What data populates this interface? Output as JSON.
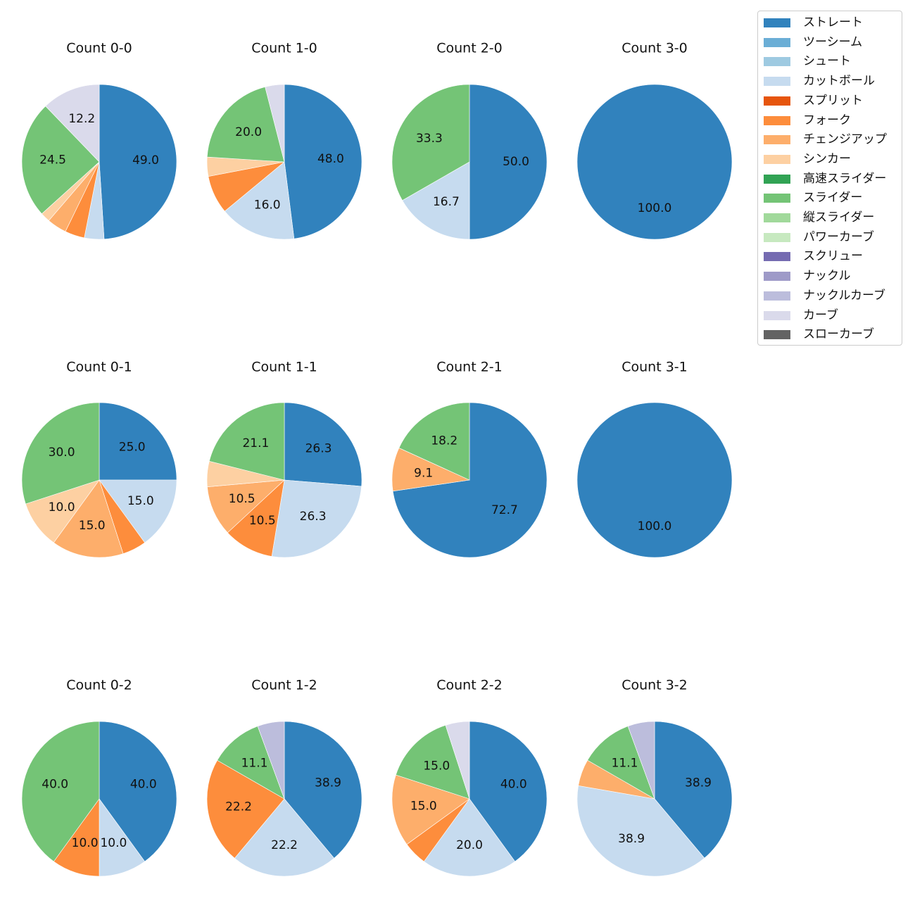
{
  "legend": [
    {
      "name": "ストレート",
      "color": "#3182bd"
    },
    {
      "name": "ツーシーム",
      "color": "#6baed6"
    },
    {
      "name": "シュート",
      "color": "#9ecae1"
    },
    {
      "name": "カットボール",
      "color": "#c6dbef"
    },
    {
      "name": "スプリット",
      "color": "#e6550d"
    },
    {
      "name": "フォーク",
      "color": "#fd8d3c"
    },
    {
      "name": "チェンジアップ",
      "color": "#fdae6b"
    },
    {
      "name": "シンカー",
      "color": "#fdd0a2"
    },
    {
      "name": "高速スライダー",
      "color": "#31a354"
    },
    {
      "name": "スライダー",
      "color": "#74c476"
    },
    {
      "name": "縦スライダー",
      "color": "#a1d99b"
    },
    {
      "name": "パワーカーブ",
      "color": "#c7e9c0"
    },
    {
      "name": "スクリュー",
      "color": "#756bb1"
    },
    {
      "name": "ナックル",
      "color": "#9e9ac8"
    },
    {
      "name": "ナックルカーブ",
      "color": "#bcbddc"
    },
    {
      "name": "カーブ",
      "color": "#dadaeb"
    },
    {
      "name": "スローカーブ",
      "color": "#636363"
    }
  ],
  "chart_data": [
    {
      "type": "pie",
      "title": "Count 0-0",
      "slices": [
        {
          "label": "ストレート",
          "value": 49.0,
          "text": "49.0"
        },
        {
          "label": "カットボール",
          "value": 4.1
        },
        {
          "label": "フォーク",
          "value": 4.1
        },
        {
          "label": "チェンジアップ",
          "value": 4.1
        },
        {
          "label": "シンカー",
          "value": 2.0
        },
        {
          "label": "スライダー",
          "value": 24.5,
          "text": "24.5"
        },
        {
          "label": "カーブ",
          "value": 12.2,
          "text": "12.2"
        }
      ]
    },
    {
      "type": "pie",
      "title": "Count 1-0",
      "slices": [
        {
          "label": "ストレート",
          "value": 48.0,
          "text": "48.0"
        },
        {
          "label": "カットボール",
          "value": 16.0,
          "text": "16.0"
        },
        {
          "label": "フォーク",
          "value": 8.0
        },
        {
          "label": "シンカー",
          "value": 4.0
        },
        {
          "label": "スライダー",
          "value": 20.0,
          "text": "20.0"
        },
        {
          "label": "カーブ",
          "value": 4.0
        }
      ]
    },
    {
      "type": "pie",
      "title": "Count 2-0",
      "slices": [
        {
          "label": "ストレート",
          "value": 50.0,
          "text": "50.0"
        },
        {
          "label": "カットボール",
          "value": 16.7,
          "text": "16.7"
        },
        {
          "label": "スライダー",
          "value": 33.3,
          "text": "33.3"
        }
      ]
    },
    {
      "type": "pie",
      "title": "Count 3-0",
      "slices": [
        {
          "label": "ストレート",
          "value": 100.0,
          "text": "100.0"
        }
      ]
    },
    {
      "type": "pie",
      "title": "Count 0-1",
      "slices": [
        {
          "label": "ストレート",
          "value": 25.0,
          "text": "25.0"
        },
        {
          "label": "カットボール",
          "value": 15.0,
          "text": "15.0"
        },
        {
          "label": "フォーク",
          "value": 5.0
        },
        {
          "label": "チェンジアップ",
          "value": 15.0,
          "text": "15.0"
        },
        {
          "label": "シンカー",
          "value": 10.0,
          "text": "10.0"
        },
        {
          "label": "スライダー",
          "value": 30.0,
          "text": "30.0"
        }
      ]
    },
    {
      "type": "pie",
      "title": "Count 1-1",
      "slices": [
        {
          "label": "ストレート",
          "value": 26.3,
          "text": "26.3"
        },
        {
          "label": "カットボール",
          "value": 26.3,
          "text": "26.3"
        },
        {
          "label": "フォーク",
          "value": 10.5,
          "text": "10.5"
        },
        {
          "label": "チェンジアップ",
          "value": 10.5,
          "text": "10.5"
        },
        {
          "label": "シンカー",
          "value": 5.3
        },
        {
          "label": "スライダー",
          "value": 21.1,
          "text": "21.1"
        }
      ]
    },
    {
      "type": "pie",
      "title": "Count 2-1",
      "slices": [
        {
          "label": "ストレート",
          "value": 72.7,
          "text": "72.7"
        },
        {
          "label": "チェンジアップ",
          "value": 9.1,
          "text": "9.1"
        },
        {
          "label": "スライダー",
          "value": 18.2,
          "text": "18.2"
        }
      ]
    },
    {
      "type": "pie",
      "title": "Count 3-1",
      "slices": [
        {
          "label": "ストレート",
          "value": 100.0,
          "text": "100.0"
        }
      ]
    },
    {
      "type": "pie",
      "title": "Count 0-2",
      "slices": [
        {
          "label": "ストレート",
          "value": 40.0,
          "text": "40.0"
        },
        {
          "label": "カットボール",
          "value": 10.0,
          "text": "10.0"
        },
        {
          "label": "フォーク",
          "value": 10.0,
          "text": "10.0"
        },
        {
          "label": "スライダー",
          "value": 40.0,
          "text": "40.0"
        }
      ]
    },
    {
      "type": "pie",
      "title": "Count 1-2",
      "slices": [
        {
          "label": "ストレート",
          "value": 38.9,
          "text": "38.9"
        },
        {
          "label": "カットボール",
          "value": 22.2,
          "text": "22.2"
        },
        {
          "label": "フォーク",
          "value": 22.2,
          "text": "22.2"
        },
        {
          "label": "スライダー",
          "value": 11.1,
          "text": "11.1"
        },
        {
          "label": "ナックルカーブ",
          "value": 5.6
        }
      ]
    },
    {
      "type": "pie",
      "title": "Count 2-2",
      "slices": [
        {
          "label": "ストレート",
          "value": 40.0,
          "text": "40.0"
        },
        {
          "label": "カットボール",
          "value": 20.0,
          "text": "20.0"
        },
        {
          "label": "フォーク",
          "value": 5.0
        },
        {
          "label": "チェンジアップ",
          "value": 15.0,
          "text": "15.0"
        },
        {
          "label": "スライダー",
          "value": 15.0,
          "text": "15.0"
        },
        {
          "label": "カーブ",
          "value": 5.0
        }
      ]
    },
    {
      "type": "pie",
      "title": "Count 3-2",
      "slices": [
        {
          "label": "ストレート",
          "value": 38.9,
          "text": "38.9"
        },
        {
          "label": "カットボール",
          "value": 38.9,
          "text": "38.9"
        },
        {
          "label": "チェンジアップ",
          "value": 5.6
        },
        {
          "label": "スライダー",
          "value": 11.1,
          "text": "11.1"
        },
        {
          "label": "ナックルカーブ",
          "value": 5.6
        }
      ]
    }
  ]
}
